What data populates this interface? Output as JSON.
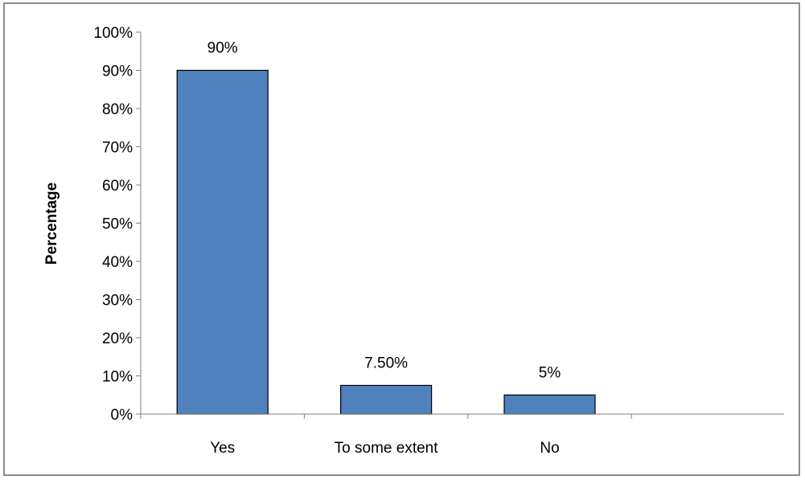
{
  "chart_data": {
    "type": "bar",
    "categories": [
      "Yes",
      "To some extent",
      "No"
    ],
    "values": [
      90,
      7.5,
      5
    ],
    "value_labels": [
      "90%",
      "7.50%",
      "5%"
    ],
    "title": "",
    "xlabel": "",
    "ylabel": "Percentage",
    "ylim": [
      0,
      100
    ],
    "yticks": [
      0,
      10,
      20,
      30,
      40,
      50,
      60,
      70,
      80,
      90,
      100
    ],
    "ytick_labels": [
      "0%",
      "10%",
      "20%",
      "30%",
      "40%",
      "50%",
      "60%",
      "70%",
      "80%",
      "90%",
      "100%"
    ],
    "grid": false,
    "legend": "none",
    "colors": {
      "bar_fill": "#4f81bd",
      "bar_stroke": "#000000",
      "axis": "#808080"
    }
  }
}
